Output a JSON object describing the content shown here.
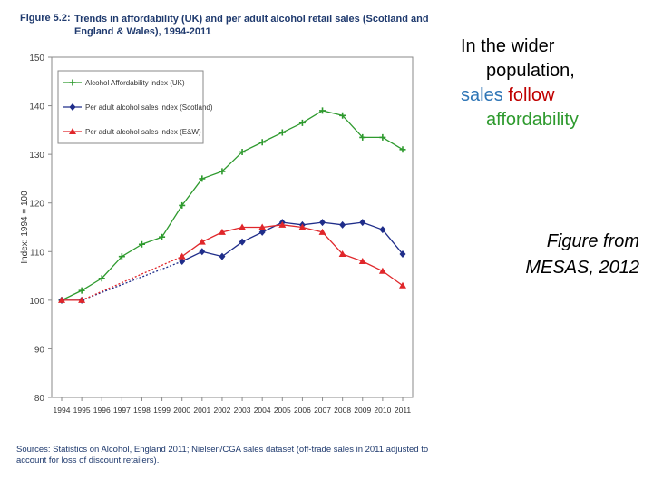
{
  "figure": {
    "label": "Figure 5.2:",
    "title": "Trends in affordability (UK) and per adult alcohol retail sales (Scotland and England & Wales), 1994-2011",
    "source": "Sources: Statistics on Alcohol, England 2011; Nielsen/CGA sales dataset (off-trade sales in 2011 adjusted to account for loss of discount retailers)."
  },
  "side_text": {
    "line1": "In the wider",
    "line2": "population,",
    "word_sales": "sales",
    "word_follow": "follow",
    "line4": "affordability",
    "color_sales": "#2e75b6",
    "color_follow": "#c00000",
    "color_affordability": "#2e9a2e"
  },
  "credit": {
    "line1": "Figure from",
    "line2": "MESAS, 2012"
  },
  "chart_data": {
    "type": "line",
    "title": "Trends in affordability (UK) and per adult alcohol retail sales (Scotland and England & Wales), 1994-2011",
    "xlabel": "",
    "ylabel": "Index: 1994 = 100",
    "ylim": [
      80,
      150
    ],
    "yticks": [
      80,
      90,
      100,
      110,
      120,
      130,
      140,
      150
    ],
    "grid": false,
    "legend": "top-left",
    "x": [
      "1994",
      "1995",
      "1996",
      "1997",
      "1998",
      "1999",
      "2000",
      "2001",
      "2002",
      "2003",
      "2004",
      "2005",
      "2006",
      "2007",
      "2008",
      "2009",
      "2010",
      "2011"
    ],
    "series": [
      {
        "name": "Alcohol Affordability index (UK)",
        "color": "#2e9a2e",
        "marker": "plus",
        "values": [
          100,
          102,
          104.5,
          109,
          111.5,
          113,
          119.5,
          125,
          126.5,
          130.5,
          132.5,
          134.5,
          136.5,
          139,
          138,
          133.5,
          133.5,
          131
        ]
      },
      {
        "name": "Per adult alcohol sales index (Scotland)",
        "color": "#1f2d8a",
        "marker": "diamond",
        "values": [
          100,
          100,
          null,
          null,
          null,
          null,
          108,
          110,
          109,
          112,
          114,
          116,
          115.5,
          116,
          115.5,
          116,
          114.5,
          109.5
        ]
      },
      {
        "name": "Per adult alcohol sales index (E&W)",
        "color": "#e0262a",
        "marker": "triangle",
        "values": [
          100,
          100,
          null,
          null,
          null,
          null,
          109,
          112,
          114,
          115,
          115,
          115.5,
          115,
          114,
          109.5,
          108,
          106,
          103
        ]
      }
    ]
  }
}
